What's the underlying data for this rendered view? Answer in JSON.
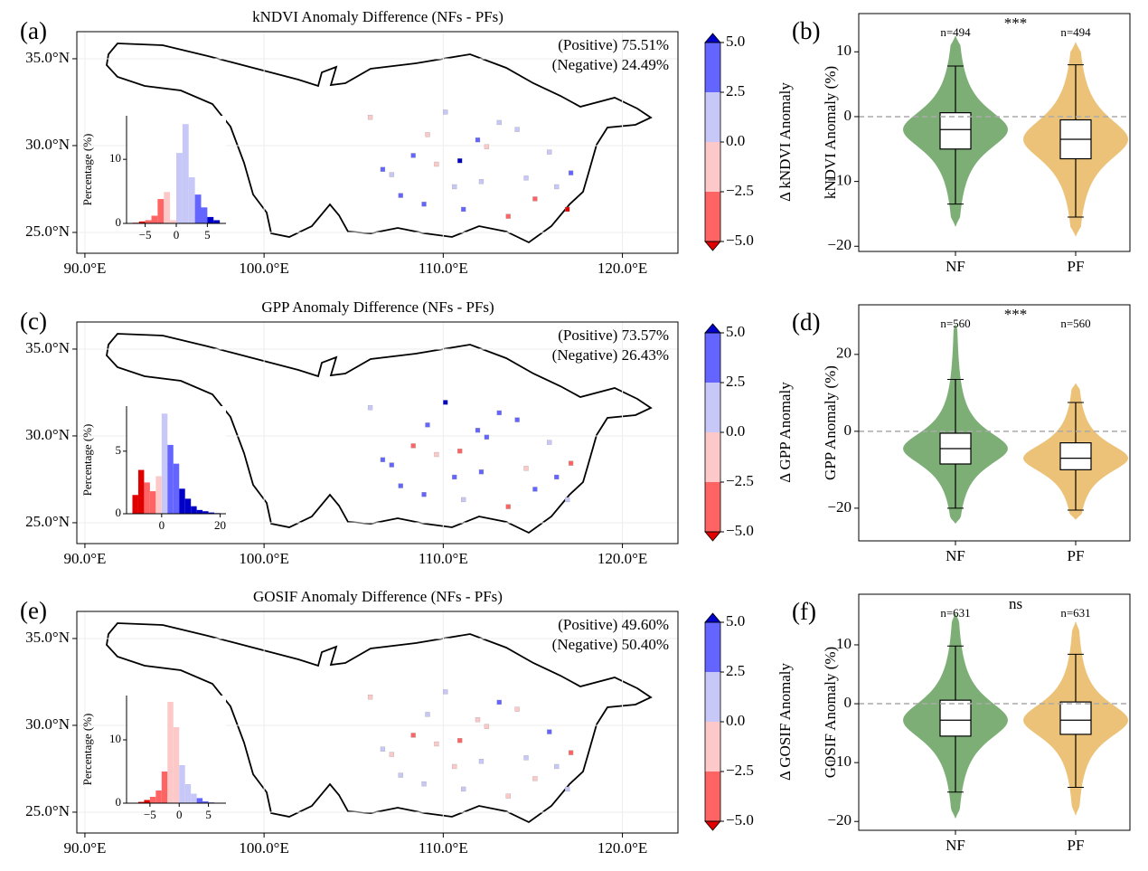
{
  "chart_data": [
    {
      "type": "map",
      "panel_label": "(a)",
      "title": "kNDVI Anomaly Difference (NFs - PFs)",
      "annotations": [
        "(Positive) 75.51%",
        "(Negative) 24.49%"
      ],
      "annotation_colors": [
        "#1a1acc",
        "#e02020"
      ],
      "xlim": [
        89.55,
        123.1
      ],
      "ylim": [
        23.8,
        36.56
      ],
      "xticks": [
        {
          "value": 90,
          "label": "90.0°E"
        },
        {
          "value": 100,
          "label": "100.0°E"
        },
        {
          "value": 110,
          "label": "110.0°E"
        },
        {
          "value": 120,
          "label": "120.0°E"
        }
      ],
      "yticks": [
        {
          "value": 25,
          "label": "25.0°N"
        },
        {
          "value": 30,
          "label": "30.0°N"
        },
        {
          "value": 35,
          "label": "35.0°N"
        }
      ],
      "grid": true,
      "cell_lon": [
        106.5,
        107,
        108.2,
        109,
        110.5,
        111,
        112.3,
        113,
        114.5,
        115,
        116.2,
        117,
        105.8,
        108.8,
        110,
        111.8,
        113.5,
        115.8,
        107.5,
        109.5,
        112,
        114,
        116.8,
        110.8
      ],
      "cell_lat": [
        28.5,
        28.2,
        29.3,
        30.5,
        27.5,
        26.2,
        29.8,
        31.2,
        28,
        26.8,
        27.5,
        28.3,
        31.5,
        26.5,
        31.8,
        30.2,
        25.8,
        29.5,
        27,
        28.8,
        27.8,
        30.8,
        26.2,
        29
      ],
      "cell_values": [
        3,
        1,
        2.7,
        -1,
        1.5,
        3.2,
        -2,
        1,
        2,
        -3.5,
        1.2,
        3,
        -1.5,
        2.6,
        1,
        3.5,
        -2.8,
        1.8,
        2.9,
        -0.8,
        1.4,
        2.2,
        -5.5,
        6
      ],
      "colorbar": {
        "label": "Δ kNDVI Anomaly",
        "ticks": [
          {
            "value": -5,
            "label": "−5.0"
          },
          {
            "value": -2.5,
            "label": "−2.5"
          },
          {
            "value": 0,
            "label": "0.0"
          },
          2.5,
          {
            "value": 5,
            "label": "5.0"
          }
        ],
        "colors": [
          "#ff6464",
          "#fdc8c8",
          "#c8c8f8",
          "#6464ff"
        ],
        "under_color": "#e00000",
        "over_color": "#0000c8"
      },
      "inset": {
        "type": "histogram",
        "ylabel": "Percentage (%)",
        "bins": [
          -7,
          -6,
          -5,
          -4,
          -3,
          -2,
          -1,
          0,
          1,
          2,
          3,
          4,
          5,
          6,
          7
        ],
        "counts": [
          0.1,
          0.3,
          0.5,
          1.2,
          3.8,
          4.9,
          0.5,
          11,
          15.5,
          7.2,
          4.5,
          2.5,
          1.0,
          0.5
        ],
        "xlim": [
          -8,
          8
        ],
        "ylim": [
          0,
          16.8
        ],
        "xticks": [
          {
            "value": -5,
            "label": "−5"
          },
          0,
          5
        ],
        "yticks": [
          0,
          10
        ]
      }
    },
    {
      "type": "map",
      "panel_label": "(c)",
      "title": "GPP Anomaly Difference (NFs - PFs)",
      "annotations": [
        "(Positive) 73.57%",
        "(Negative) 26.43%"
      ],
      "annotation_colors": [
        "#1a1acc",
        "#e02020"
      ],
      "xlim": [
        89.55,
        123.1
      ],
      "ylim": [
        23.8,
        36.56
      ],
      "xticks": [
        {
          "value": 90,
          "label": "90.0°E"
        },
        {
          "value": 100,
          "label": "100.0°E"
        },
        {
          "value": 110,
          "label": "110.0°E"
        },
        {
          "value": 120,
          "label": "120.0°E"
        }
      ],
      "yticks": [
        {
          "value": 25,
          "label": "25.0°N"
        },
        {
          "value": 30,
          "label": "30.0°N"
        },
        {
          "value": 35,
          "label": "35.0°N"
        }
      ],
      "grid": true,
      "cell_lon": [
        106.5,
        107,
        108.2,
        109,
        110.5,
        111,
        112.3,
        113,
        114.5,
        115,
        116.2,
        117,
        105.8,
        108.8,
        110,
        111.8,
        113.5,
        115.8,
        107.5,
        109.5,
        112,
        114,
        116.8,
        110.8
      ],
      "cell_lat": [
        28.5,
        28.2,
        29.3,
        30.5,
        27.5,
        26.2,
        29.8,
        31.2,
        28,
        26.8,
        27.5,
        28.3,
        31.5,
        26.5,
        31.8,
        30.2,
        25.8,
        29.5,
        27,
        28.8,
        27.8,
        30.8,
        26.2,
        29
      ],
      "cell_values": [
        4,
        3,
        -3,
        3.5,
        2.6,
        1,
        3.1,
        4.5,
        -1,
        2.8,
        3.2,
        -4,
        1.5,
        3,
        5.5,
        2.7,
        -2.6,
        1.2,
        3.8,
        -1.2,
        2.9,
        3.4,
        1,
        -3
      ],
      "colorbar": {
        "label": "Δ GPP Anomaly",
        "ticks": [
          {
            "value": -5,
            "label": "−5.0"
          },
          {
            "value": -2.5,
            "label": "−2.5"
          },
          {
            "value": 0,
            "label": "0.0"
          },
          2.5,
          {
            "value": 5,
            "label": "5.0"
          }
        ],
        "colors": [
          "#ff6464",
          "#fdc8c8",
          "#c8c8f8",
          "#6464ff"
        ],
        "under_color": "#e00000",
        "over_color": "#0000c8"
      },
      "inset": {
        "type": "histogram",
        "ylabel": "Percentage (%)",
        "bins": [
          -10,
          -8,
          -6,
          -4,
          -2,
          0,
          2,
          4,
          6,
          8,
          10,
          12,
          14,
          16,
          18,
          20
        ],
        "counts": [
          1.5,
          3.5,
          2.5,
          1.8,
          3,
          8,
          5.5,
          4,
          2,
          1.2,
          0.6,
          0.3,
          0.2,
          0.1,
          0.05
        ],
        "xlim": [
          -12,
          22
        ],
        "ylim": [
          0,
          8.6
        ],
        "xticks": [
          0,
          20
        ],
        "yticks": [
          0,
          5
        ]
      }
    },
    {
      "type": "map",
      "panel_label": "(e)",
      "title": "GOSIF Anomaly Difference (NFs - PFs)",
      "annotations": [
        "(Positive) 49.60%",
        "(Negative) 50.40%"
      ],
      "annotation_colors": [
        "#1a1acc",
        "#e02020"
      ],
      "xlim": [
        89.55,
        123.1
      ],
      "ylim": [
        23.8,
        36.56
      ],
      "xticks": [
        {
          "value": 90,
          "label": "90.0°E"
        },
        {
          "value": 100,
          "label": "100.0°E"
        },
        {
          "value": 110,
          "label": "110.0°E"
        },
        {
          "value": 120,
          "label": "120.0°E"
        }
      ],
      "yticks": [
        {
          "value": 25,
          "label": "25.0°N"
        },
        {
          "value": 30,
          "label": "30.0°N"
        },
        {
          "value": 35,
          "label": "35.0°N"
        }
      ],
      "grid": true,
      "cell_lon": [
        106.5,
        107,
        108.2,
        109,
        110.5,
        111,
        112.3,
        113,
        114.5,
        115,
        116.2,
        117,
        105.8,
        108.8,
        110,
        111.8,
        113.5,
        115.8,
        107.5,
        109.5,
        112,
        114,
        116.8,
        110.8
      ],
      "cell_lat": [
        28.5,
        28.2,
        29.3,
        30.5,
        27.5,
        26.2,
        29.8,
        31.2,
        28,
        26.8,
        27.5,
        28.3,
        31.5,
        26.5,
        31.8,
        30.2,
        25.8,
        29.5,
        27,
        28.8,
        27.8,
        30.8,
        26.2,
        29
      ],
      "cell_values": [
        1,
        -1,
        -3,
        1.5,
        -0.5,
        1.2,
        -1.3,
        2.6,
        0.8,
        -0.7,
        1.1,
        -2.7,
        -0.6,
        0.9,
        1.3,
        -1.1,
        -0.4,
        2.7,
        0.5,
        -1.5,
        1,
        -0.9,
        0.6,
        -2.9
      ],
      "colorbar": {
        "label": "Δ GOSIF Anomaly",
        "ticks": [
          {
            "value": -5,
            "label": "−5.0"
          },
          {
            "value": -2.5,
            "label": "−2.5"
          },
          {
            "value": 0,
            "label": "0.0"
          },
          2.5,
          {
            "value": 5,
            "label": "5.0"
          }
        ],
        "colors": [
          "#ff6464",
          "#fdc8c8",
          "#c8c8f8",
          "#6464ff"
        ],
        "under_color": "#e00000",
        "over_color": "#0000c8"
      },
      "inset": {
        "type": "histogram",
        "ylabel": "Percentage (%)",
        "bins": [
          -7,
          -6,
          -5,
          -4,
          -3,
          -2,
          -1,
          0,
          1,
          2,
          3,
          4,
          5,
          6
        ],
        "counts": [
          0.2,
          0.5,
          1,
          2,
          5,
          16,
          12,
          6,
          3,
          1.5,
          0.8,
          0.3,
          0.1
        ],
        "xlim": [
          -9,
          8
        ],
        "ylim": [
          0,
          17
        ],
        "xticks": [
          {
            "value": -5,
            "label": "−5"
          },
          0,
          5
        ],
        "yticks": [
          0,
          10
        ]
      }
    },
    {
      "type": "violin",
      "panel_label": "(b)",
      "ylabel": "kNDVI Anomaly (%)",
      "significance": "***",
      "ylim": [
        -20.8,
        15.9
      ],
      "yticks": [
        {
          "value": -20,
          "label": "−20"
        },
        {
          "value": -10,
          "label": "−10"
        },
        0,
        10
      ],
      "ref_line": 0,
      "series": [
        {
          "name": "NF",
          "color": "#7cae76",
          "n_label": "n=494",
          "extent": [
            -17,
            12.5
          ],
          "whiskers": [
            -13.5,
            7.8
          ],
          "q1": -5,
          "median": -2,
          "q3": 0.6
        },
        {
          "name": "PF",
          "color": "#ebc278",
          "n_label": "n=494",
          "extent": [
            -18.5,
            11.5
          ],
          "whiskers": [
            -15.5,
            8
          ],
          "q1": -6.5,
          "median": -3.5,
          "q3": -0.5
        }
      ]
    },
    {
      "type": "violin",
      "panel_label": "(d)",
      "ylabel": "GPP Anomaly (%)",
      "significance": "***",
      "ylim": [
        -28.5,
        32.9
      ],
      "yticks": [
        {
          "value": -20,
          "label": "−20"
        },
        0,
        20
      ],
      "ref_line": 0,
      "series": [
        {
          "name": "NF",
          "color": "#7cae76",
          "n_label": "n=560",
          "extent": [
            -24,
            28
          ],
          "whiskers": [
            -20,
            13.5
          ],
          "q1": -8.5,
          "median": -4.5,
          "q3": -0.5
        },
        {
          "name": "PF",
          "color": "#ebc278",
          "n_label": "n=560",
          "extent": [
            -23,
            12.5
          ],
          "whiskers": [
            -20.5,
            7.5
          ],
          "q1": -10,
          "median": -7,
          "q3": -3
        }
      ]
    },
    {
      "type": "violin",
      "panel_label": "(f)",
      "ylabel": "GOSIF Anomaly (%)",
      "significance": "ns",
      "ylim": [
        -21.5,
        18.6
      ],
      "yticks": [
        {
          "value": -20,
          "label": "−20"
        },
        {
          "value": -10,
          "label": "−10"
        },
        0,
        10
      ],
      "ref_line": 0,
      "series": [
        {
          "name": "NF",
          "color": "#7cae76",
          "n_label": "n=631",
          "extent": [
            -19.5,
            15.5
          ],
          "whiskers": [
            -15,
            9.8
          ],
          "q1": -5.5,
          "median": -2.8,
          "q3": 0.6
        },
        {
          "name": "PF",
          "color": "#ebc278",
          "n_label": "n=631",
          "extent": [
            -19,
            14
          ],
          "whiskers": [
            -14.2,
            8.4
          ],
          "q1": -5.2,
          "median": -2.8,
          "q3": 0.3
        }
      ]
    }
  ]
}
